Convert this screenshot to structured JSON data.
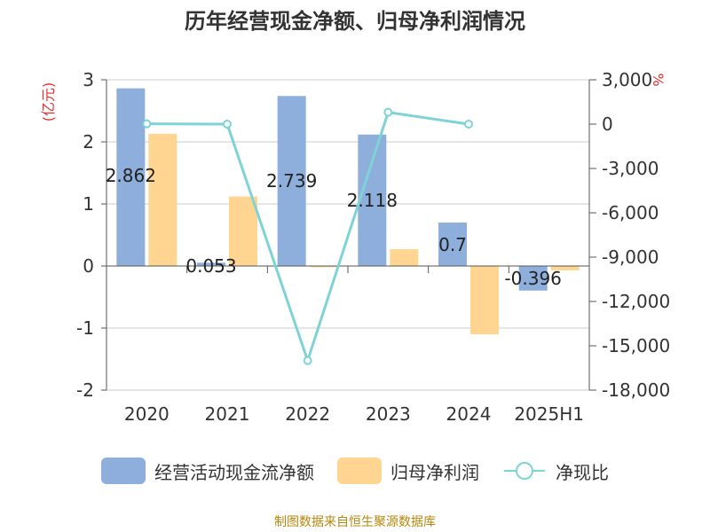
{
  "chart_data": {
    "type": "bar",
    "title": "历年经营现金净额、归母净利润情况",
    "categories": [
      "2020",
      "2021",
      "2022",
      "2023",
      "2024",
      "2025H1"
    ],
    "y_left_label": "(亿元)",
    "y_right_label": "%",
    "y_left_lim": [
      -2,
      3
    ],
    "y_left_ticks": [
      "3",
      "2",
      "1",
      "0",
      "-1",
      "-2"
    ],
    "y_right_lim": [
      -18000,
      3000
    ],
    "y_right_ticks": [
      "3,000",
      "0",
      "-3,000",
      "-6,000",
      "-9,000",
      "-12,000",
      "-15,000",
      "-18,000"
    ],
    "grid": true,
    "legend_position": "bottom",
    "series": [
      {
        "name": "经营活动现金流净额",
        "kind": "bar",
        "axis": "left",
        "color": "#8eaedc",
        "values": [
          2.862,
          0.053,
          2.739,
          2.118,
          0.7,
          -0.396
        ],
        "labels": [
          "2.862",
          "0.053",
          "2.739",
          "2.118",
          "0.7",
          "-0.396"
        ]
      },
      {
        "name": "归母净利润",
        "kind": "bar",
        "axis": "left",
        "color": "#ffd591",
        "values": [
          2.13,
          1.12,
          -0.02,
          0.27,
          -1.1,
          -0.07
        ]
      },
      {
        "name": "净现比",
        "kind": "line",
        "axis": "right",
        "color": "#7ed3d6",
        "values": [
          20,
          0,
          -16000,
          800,
          0,
          null
        ]
      }
    ]
  },
  "source_text": "制图数据来自恒生聚源数据库"
}
